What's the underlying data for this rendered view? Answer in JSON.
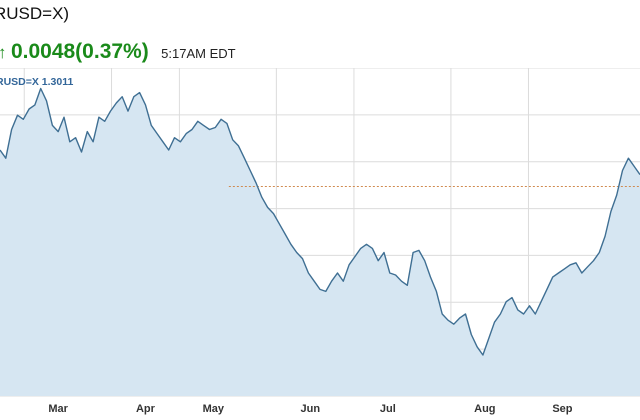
{
  "header": {
    "title": "RUSD=X)",
    "change_arrow": "↑",
    "change_text": "0.0048(0.37%)",
    "time": "5:17AM EDT"
  },
  "colors": {
    "up": "#1a8a1a",
    "line": "#3f6f93",
    "area": "#d6e6f2",
    "grid": "#dcdcdc",
    "ref": "#d08a50"
  },
  "chart_data": {
    "type": "area",
    "legend": "RUSD=X 1.3011",
    "ref_value": 1.3011,
    "ylim": [
      1.25,
      1.33
    ],
    "categories": [
      "Mar",
      "Apr",
      "May",
      "Jun",
      "Jul",
      "Aug",
      "Sep"
    ],
    "category_pos": [
      3.0,
      7.5,
      11.0,
      16.0,
      20.0,
      25.0,
      29.0
    ],
    "x_end": 33.0,
    "x": [
      0,
      0.3,
      0.6,
      0.9,
      1.2,
      1.5,
      1.8,
      2.1,
      2.4,
      2.7,
      3.0,
      3.3,
      3.6,
      3.9,
      4.2,
      4.5,
      4.8,
      5.1,
      5.4,
      5.7,
      6.0,
      6.3,
      6.6,
      6.9,
      7.2,
      7.5,
      7.8,
      8.1,
      8.4,
      8.7,
      9.0,
      9.3,
      9.6,
      9.9,
      10.2,
      10.5,
      10.8,
      11.1,
      11.4,
      11.7,
      12.0,
      12.3,
      12.6,
      12.9,
      13.2,
      13.5,
      13.8,
      14.1,
      14.4,
      14.7,
      15.0,
      15.3,
      15.6,
      15.9,
      16.2,
      16.5,
      16.8,
      17.1,
      17.4,
      17.7,
      18.0,
      18.3,
      18.6,
      18.9,
      19.2,
      19.5,
      19.8,
      20.1,
      20.4,
      20.7,
      21.0,
      21.3,
      21.6,
      21.9,
      22.2,
      22.5,
      22.8,
      23.1,
      23.4,
      23.7,
      24.0,
      24.3,
      24.6,
      24.9,
      25.2,
      25.5,
      25.8,
      26.1,
      26.4,
      26.7,
      27.0,
      27.3,
      27.6,
      27.9,
      28.2,
      28.5,
      28.8,
      29.1,
      29.4,
      29.7,
      30.0,
      30.3,
      30.6,
      30.9,
      31.2,
      31.5,
      31.8,
      32.1,
      32.4,
      32.7,
      33.0
    ],
    "values": [
      1.31,
      1.308,
      1.315,
      1.3185,
      1.3175,
      1.32,
      1.321,
      1.325,
      1.322,
      1.316,
      1.3145,
      1.318,
      1.312,
      1.313,
      1.3095,
      1.3145,
      1.312,
      1.318,
      1.317,
      1.3195,
      1.3215,
      1.323,
      1.3195,
      1.323,
      1.324,
      1.321,
      1.316,
      1.314,
      1.312,
      1.31,
      1.313,
      1.312,
      1.314,
      1.315,
      1.317,
      1.316,
      1.315,
      1.3155,
      1.3175,
      1.3165,
      1.3125,
      1.311,
      1.308,
      1.305,
      1.302,
      1.2985,
      1.296,
      1.2945,
      1.292,
      1.2895,
      1.287,
      1.285,
      1.2835,
      1.28,
      1.278,
      1.276,
      1.2755,
      1.278,
      1.28,
      1.278,
      1.282,
      1.284,
      1.286,
      1.287,
      1.286,
      1.283,
      1.285,
      1.28,
      1.2795,
      1.278,
      1.277,
      1.285,
      1.2855,
      1.283,
      1.279,
      1.2755,
      1.27,
      1.2685,
      1.2675,
      1.269,
      1.27,
      1.265,
      1.262,
      1.26,
      1.264,
      1.268,
      1.27,
      1.273,
      1.274,
      1.271,
      1.27,
      1.272,
      1.27,
      1.273,
      1.276,
      1.279,
      1.28,
      1.281,
      1.282,
      1.2825,
      1.28,
      1.2815,
      1.283,
      1.285,
      1.289,
      1.295,
      1.299,
      1.305,
      1.308,
      1.306,
      1.304
    ]
  }
}
